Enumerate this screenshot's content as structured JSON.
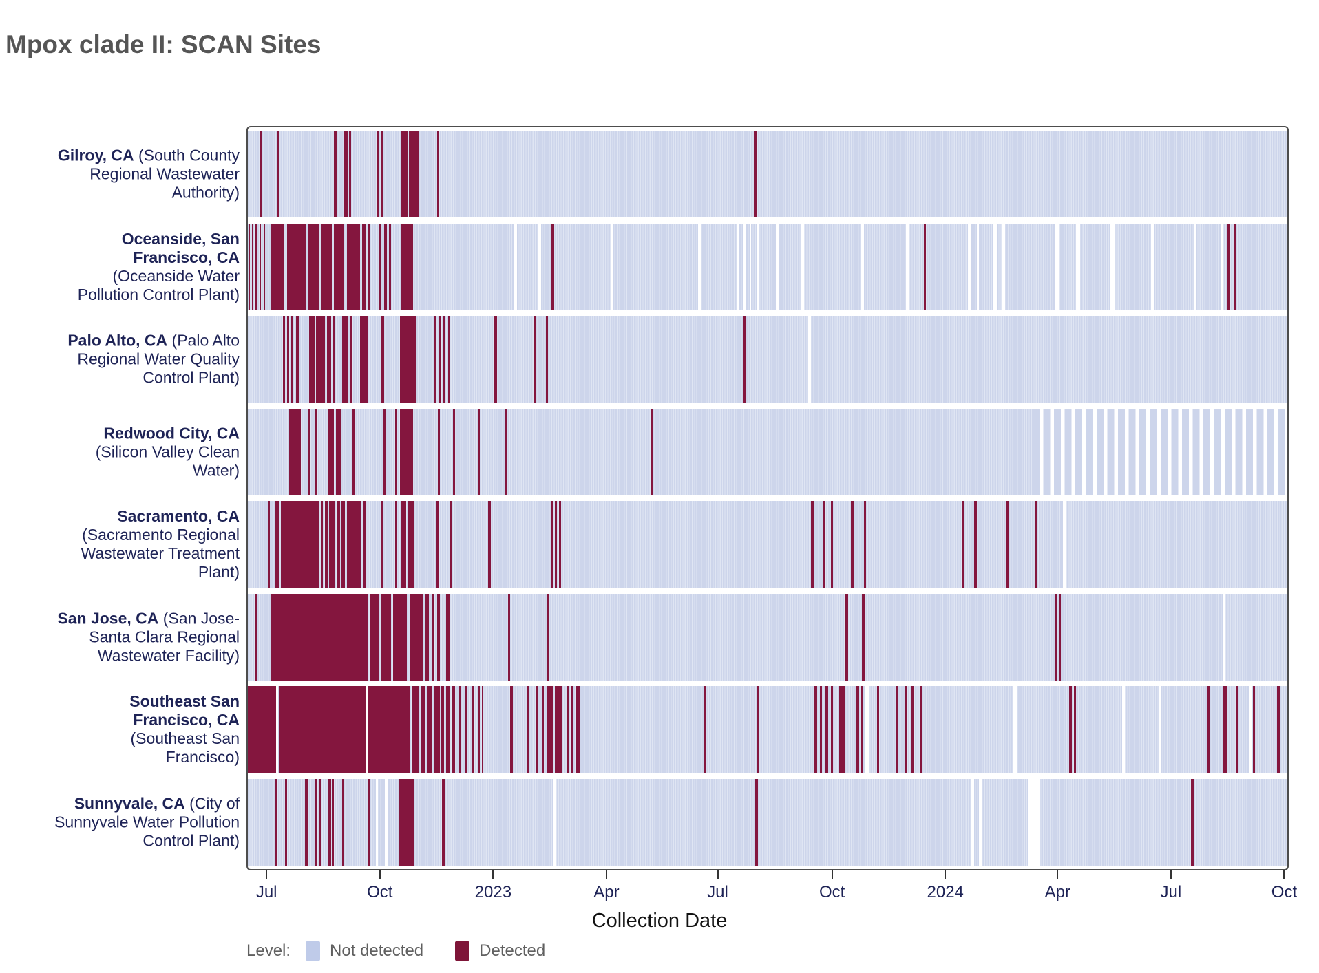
{
  "title": "Mpox clade II: SCAN Sites",
  "x_axis": {
    "label": "Collection Date",
    "ticks": [
      {
        "label": "Jul",
        "date": "2022-07-01",
        "pct": 1.8
      },
      {
        "label": "Oct",
        "date": "2022-10-01",
        "pct": 12.7
      },
      {
        "label": "2023",
        "date": "2023-01-01",
        "pct": 23.6
      },
      {
        "label": "Apr",
        "date": "2023-04-01",
        "pct": 34.5
      },
      {
        "label": "Jul",
        "date": "2023-07-01",
        "pct": 45.2
      },
      {
        "label": "Oct",
        "date": "2023-10-01",
        "pct": 56.2
      },
      {
        "label": "2024",
        "date": "2024-01-01",
        "pct": 67.1
      },
      {
        "label": "Apr",
        "date": "2024-04-01",
        "pct": 77.9
      },
      {
        "label": "Jul",
        "date": "2024-07-01",
        "pct": 88.8
      },
      {
        "label": "Oct",
        "date": "2024-10-01",
        "pct": 99.7
      }
    ]
  },
  "legend": {
    "label": "Level:",
    "items": [
      {
        "label": "Not detected",
        "color": "#bfcbe9"
      },
      {
        "label": "Detected",
        "color": "#7e1538"
      }
    ]
  },
  "colors": {
    "detected": "#84163e",
    "not_detected": "#cdd5eb",
    "panel_border": "#4d4d4d",
    "label_navy": "#1e2356",
    "title_gray": "#555555",
    "legend_text": "#606060"
  },
  "chart_data": {
    "type": "heatmap",
    "subtype": "detection-barcode-timeline",
    "x_domain": [
      "2022-06-16",
      "2024-10-02"
    ],
    "x_unit": "percent_of_axis",
    "levels": [
      "Not detected",
      "Detected"
    ],
    "sites": [
      {
        "city": "Gilroy, CA",
        "plant": "(South County Regional Wastewater Authority)",
        "detected_segments_pct": [
          [
            1.2,
            0.2
          ],
          [
            2.8,
            0.2
          ],
          [
            8.3,
            0.25
          ],
          [
            9.2,
            0.45
          ],
          [
            9.75,
            0.2
          ],
          [
            12.4,
            0.2
          ],
          [
            12.85,
            0.2
          ],
          [
            14.75,
            0.6
          ],
          [
            15.5,
            0.9
          ],
          [
            18.2,
            0.2
          ],
          [
            48.7,
            0.25
          ]
        ],
        "no_sample_gaps_pct": [],
        "sparse_sampling_pct": []
      },
      {
        "city": "Oceanside, San Francisco, CA",
        "plant": "(Oceanside Water Pollution Control Plant)",
        "detected_segments_pct": [
          [
            0.05,
            0.15
          ],
          [
            0.4,
            0.15
          ],
          [
            0.75,
            0.15
          ],
          [
            1.1,
            0.15
          ],
          [
            1.5,
            0.15
          ],
          [
            2.2,
            1.3
          ],
          [
            3.8,
            1.75
          ],
          [
            5.75,
            1.15
          ],
          [
            7.1,
            1.0
          ],
          [
            8.3,
            1.0
          ],
          [
            9.55,
            1.25
          ],
          [
            11.0,
            0.35
          ],
          [
            11.6,
            0.2
          ],
          [
            12.55,
            0.3
          ],
          [
            13.1,
            0.3
          ],
          [
            13.6,
            0.2
          ],
          [
            14.8,
            1.1
          ],
          [
            29.2,
            0.25
          ],
          [
            65.0,
            0.2
          ],
          [
            94.2,
            0.25
          ],
          [
            94.85,
            0.2
          ]
        ],
        "no_sample_gaps_pct": [
          [
            25.6,
            0.3
          ],
          [
            27.9,
            0.3
          ],
          [
            34.9,
            0.25
          ],
          [
            43.3,
            0.25
          ],
          [
            47.1,
            0.15
          ],
          [
            47.7,
            0.15
          ],
          [
            48.25,
            0.15
          ],
          [
            49.0,
            0.2
          ],
          [
            50.8,
            0.25
          ],
          [
            53.2,
            0.3
          ],
          [
            59.0,
            0.3
          ],
          [
            63.3,
            0.3
          ],
          [
            69.3,
            0.25
          ],
          [
            70.1,
            0.25
          ],
          [
            71.7,
            0.35
          ],
          [
            72.5,
            0.35
          ],
          [
            77.7,
            0.35
          ],
          [
            79.7,
            0.35
          ],
          [
            83.0,
            0.35
          ],
          [
            86.9,
            0.25
          ],
          [
            91.0,
            0.25
          ],
          [
            93.6,
            0.25
          ]
        ],
        "sparse_sampling_pct": []
      },
      {
        "city": "Palo Alto, CA",
        "plant": "(Palo Alto Regional Water Quality Control Plant)",
        "detected_segments_pct": [
          [
            3.35,
            0.2
          ],
          [
            3.75,
            0.2
          ],
          [
            4.15,
            0.2
          ],
          [
            4.65,
            0.25
          ],
          [
            5.9,
            0.5
          ],
          [
            6.55,
            0.85
          ],
          [
            7.6,
            0.4
          ],
          [
            8.15,
            0.2
          ],
          [
            9.05,
            0.65
          ],
          [
            9.85,
            0.2
          ],
          [
            10.8,
            0.7
          ],
          [
            12.85,
            0.25
          ],
          [
            14.65,
            1.6
          ],
          [
            17.95,
            0.2
          ],
          [
            18.35,
            0.2
          ],
          [
            18.75,
            0.2
          ],
          [
            19.25,
            0.2
          ],
          [
            23.7,
            0.25
          ],
          [
            27.55,
            0.2
          ],
          [
            28.7,
            0.2
          ],
          [
            47.65,
            0.25
          ]
        ],
        "no_sample_gaps_pct": [
          [
            53.9,
            0.3
          ]
        ],
        "sparse_sampling_pct": []
      },
      {
        "city": "Redwood City, CA",
        "plant": "(Silicon Valley Clean Water)",
        "detected_segments_pct": [
          [
            3.95,
            1.15
          ],
          [
            5.85,
            0.2
          ],
          [
            6.5,
            0.2
          ],
          [
            7.75,
            0.5
          ],
          [
            8.45,
            0.5
          ],
          [
            10.05,
            0.2
          ],
          [
            13.05,
            0.2
          ],
          [
            14.2,
            0.2
          ],
          [
            14.65,
            1.25
          ],
          [
            18.3,
            0.2
          ],
          [
            19.75,
            0.2
          ],
          [
            22.15,
            0.2
          ],
          [
            24.7,
            0.2
          ],
          [
            38.75,
            0.25
          ]
        ],
        "no_sample_gaps_pct": [],
        "sparse_sampling_pct": [
          [
            75.5,
            24.5
          ]
        ]
      },
      {
        "city": "Sacramento, CA",
        "plant": "(Sacramento Regional Wastewater Treatment Plant)",
        "detected_segments_pct": [
          [
            1.9,
            0.2
          ],
          [
            2.55,
            0.5
          ],
          [
            3.2,
            3.7
          ],
          [
            7.0,
            0.25
          ],
          [
            7.4,
            0.25
          ],
          [
            7.8,
            0.55
          ],
          [
            8.55,
            0.3
          ],
          [
            9.0,
            0.35
          ],
          [
            9.55,
            1.4
          ],
          [
            11.1,
            0.3
          ],
          [
            12.75,
            0.2
          ],
          [
            14.2,
            0.2
          ],
          [
            14.75,
            0.5
          ],
          [
            15.45,
            0.5
          ],
          [
            18.15,
            0.2
          ],
          [
            19.4,
            0.2
          ],
          [
            23.1,
            0.25
          ],
          [
            29.15,
            0.25
          ],
          [
            29.55,
            0.2
          ],
          [
            29.95,
            0.2
          ],
          [
            54.2,
            0.25
          ],
          [
            55.3,
            0.2
          ],
          [
            56.1,
            0.2
          ],
          [
            58.0,
            0.25
          ],
          [
            59.3,
            0.2
          ],
          [
            68.7,
            0.25
          ],
          [
            69.9,
            0.2
          ],
          [
            73.0,
            0.25
          ],
          [
            75.7,
            0.2
          ]
        ],
        "no_sample_gaps_pct": [
          [
            78.4,
            0.3
          ]
        ],
        "sparse_sampling_pct": []
      },
      {
        "city": "San Jose, CA",
        "plant": "(San Jose-Santa Clara Regional Wastewater Facility)",
        "detected_segments_pct": [
          [
            0.75,
            0.2
          ],
          [
            2.2,
            9.3
          ],
          [
            11.7,
            0.9
          ],
          [
            12.8,
            1.0
          ],
          [
            14.0,
            1.3
          ],
          [
            15.6,
            1.2
          ],
          [
            17.1,
            0.3
          ],
          [
            17.65,
            0.3
          ],
          [
            18.2,
            0.3
          ],
          [
            19.05,
            0.4
          ],
          [
            25.0,
            0.25
          ],
          [
            28.8,
            0.2
          ],
          [
            57.5,
            0.25
          ],
          [
            59.1,
            0.25
          ],
          [
            77.6,
            0.25
          ],
          [
            78.0,
            0.2
          ]
        ],
        "no_sample_gaps_pct": [
          [
            93.8,
            0.25
          ]
        ],
        "sparse_sampling_pct": []
      },
      {
        "city": "Southeast San Francisco, CA",
        "plant": "(Southeast San Francisco)",
        "detected_segments_pct": [
          [
            0.0,
            2.7
          ],
          [
            2.95,
            8.35
          ],
          [
            11.6,
            4.0
          ],
          [
            15.75,
            0.7
          ],
          [
            16.6,
            0.5
          ],
          [
            17.25,
            0.5
          ],
          [
            17.9,
            0.55
          ],
          [
            18.6,
            0.3
          ],
          [
            19.1,
            0.3
          ],
          [
            19.7,
            0.25
          ],
          [
            20.3,
            0.25
          ],
          [
            20.9,
            0.2
          ],
          [
            21.5,
            0.2
          ],
          [
            22.1,
            0.2
          ],
          [
            22.5,
            0.15
          ],
          [
            25.2,
            0.3
          ],
          [
            26.8,
            0.2
          ],
          [
            27.7,
            0.2
          ],
          [
            28.3,
            0.2
          ],
          [
            28.75,
            0.6
          ],
          [
            29.55,
            0.7
          ],
          [
            30.65,
            0.3
          ],
          [
            31.1,
            0.2
          ],
          [
            31.55,
            0.35
          ],
          [
            43.9,
            0.2
          ],
          [
            49.0,
            0.2
          ],
          [
            54.5,
            0.25
          ],
          [
            55.0,
            0.25
          ],
          [
            55.55,
            0.3
          ],
          [
            56.1,
            0.2
          ],
          [
            56.9,
            0.6
          ],
          [
            58.5,
            0.3
          ],
          [
            58.95,
            0.25
          ],
          [
            60.5,
            0.2
          ],
          [
            62.4,
            0.2
          ],
          [
            63.2,
            0.25
          ],
          [
            63.85,
            0.25
          ],
          [
            64.65,
            0.25
          ],
          [
            79.0,
            0.3
          ],
          [
            79.45,
            0.2
          ],
          [
            92.3,
            0.25
          ],
          [
            93.75,
            0.5
          ],
          [
            95.0,
            0.2
          ],
          [
            96.7,
            0.2
          ],
          [
            99.0,
            0.25
          ]
        ],
        "no_sample_gaps_pct": [
          [
            2.72,
            0.22
          ],
          [
            11.32,
            0.26
          ],
          [
            59.4,
            0.35
          ],
          [
            73.6,
            0.35
          ],
          [
            84.1,
            0.3
          ],
          [
            87.6,
            0.3
          ],
          [
            96.3,
            0.25
          ]
        ],
        "sparse_sampling_pct": []
      },
      {
        "city": "Sunnyvale, CA",
        "plant": "(City of Sunnyvale Water Pollution Control Plant)",
        "detected_segments_pct": [
          [
            2.6,
            0.2
          ],
          [
            3.6,
            0.2
          ],
          [
            5.5,
            0.35
          ],
          [
            6.5,
            0.2
          ],
          [
            6.9,
            0.2
          ],
          [
            7.7,
            0.3
          ],
          [
            8.1,
            0.2
          ],
          [
            9.1,
            0.2
          ],
          [
            11.5,
            0.2
          ],
          [
            14.5,
            1.45
          ],
          [
            18.7,
            0.25
          ],
          [
            48.8,
            0.25
          ],
          [
            90.7,
            0.3
          ]
        ],
        "no_sample_gaps_pct": [
          [
            12.3,
            0.25
          ],
          [
            13.2,
            0.25
          ],
          [
            29.4,
            0.3
          ],
          [
            69.6,
            0.3
          ],
          [
            70.3,
            0.3
          ],
          [
            75.1,
            1.1
          ]
        ],
        "sparse_sampling_pct": []
      }
    ]
  }
}
